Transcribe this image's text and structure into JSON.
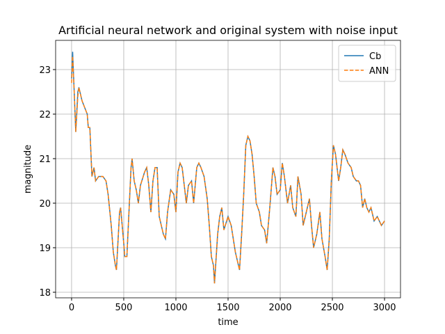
{
  "chart_data": {
    "type": "line",
    "title": "Artificial neural network and original system with noise input",
    "x_label": "time",
    "y_label": "magnitude",
    "x": [
      0,
      10,
      25,
      40,
      60,
      70,
      100,
      150,
      160,
      175,
      195,
      215,
      230,
      260,
      300,
      330,
      350,
      380,
      400,
      420,
      430,
      460,
      470,
      500,
      510,
      530,
      550,
      570,
      580,
      600,
      620,
      640,
      660,
      700,
      720,
      740,
      760,
      780,
      800,
      820,
      840,
      860,
      880,
      900,
      920,
      950,
      980,
      1000,
      1020,
      1040,
      1060,
      1100,
      1120,
      1150,
      1170,
      1200,
      1220,
      1240,
      1270,
      1300,
      1320,
      1340,
      1360,
      1370,
      1400,
      1420,
      1440,
      1460,
      1500,
      1530,
      1550,
      1570,
      1590,
      1610,
      1630,
      1650,
      1670,
      1690,
      1710,
      1730,
      1750,
      1770,
      1800,
      1820,
      1850,
      1870,
      1900,
      1930,
      1950,
      1970,
      2000,
      2020,
      2040,
      2070,
      2100,
      2120,
      2150,
      2170,
      2200,
      2220,
      2250,
      2280,
      2300,
      2320,
      2350,
      2380,
      2400,
      2430,
      2450,
      2470,
      2490,
      2510,
      2530,
      2560,
      2580,
      2600,
      2620,
      2650,
      2680,
      2700,
      2730,
      2750,
      2770,
      2790,
      2810,
      2830,
      2850,
      2870,
      2900,
      2930,
      2950,
      2970,
      3000
    ],
    "series": [
      {
        "name": "Cb",
        "color": "#1f77b4",
        "dash": false,
        "values": [
          22.8,
          23.4,
          22.5,
          21.6,
          22.5,
          22.6,
          22.3,
          22.0,
          21.7,
          21.7,
          20.6,
          20.8,
          20.5,
          20.6,
          20.6,
          20.5,
          20.2,
          19.5,
          18.9,
          18.6,
          18.5,
          19.8,
          19.9,
          19.1,
          18.8,
          18.8,
          19.8,
          20.8,
          21.0,
          20.5,
          20.3,
          20.0,
          20.4,
          20.7,
          20.8,
          20.4,
          19.8,
          20.5,
          20.8,
          20.8,
          19.7,
          19.5,
          19.3,
          19.2,
          19.8,
          20.3,
          20.2,
          19.8,
          20.7,
          20.9,
          20.8,
          20.0,
          20.4,
          20.5,
          20.0,
          20.8,
          20.9,
          20.8,
          20.6,
          20.1,
          19.5,
          18.8,
          18.6,
          18.2,
          19.3,
          19.7,
          19.9,
          19.4,
          19.7,
          19.5,
          19.2,
          18.9,
          18.7,
          18.5,
          19.3,
          20.2,
          21.3,
          21.5,
          21.4,
          21.1,
          20.6,
          20.0,
          19.8,
          19.5,
          19.4,
          19.1,
          19.9,
          20.8,
          20.6,
          20.2,
          20.3,
          20.9,
          20.6,
          20.0,
          20.4,
          19.9,
          19.7,
          20.6,
          20.2,
          19.5,
          19.8,
          20.1,
          19.5,
          19.0,
          19.3,
          19.8,
          19.2,
          18.8,
          18.5,
          19.2,
          20.5,
          21.3,
          21.1,
          20.5,
          20.8,
          21.2,
          21.1,
          20.9,
          20.8,
          20.6,
          20.5,
          20.5,
          20.4,
          19.9,
          20.1,
          19.9,
          19.8,
          19.9,
          19.6,
          19.7,
          19.6,
          19.5,
          19.6
        ]
      },
      {
        "name": "ANN",
        "color": "#ff7f0e",
        "dash": true,
        "values": [
          22.7,
          23.3,
          22.5,
          21.6,
          22.4,
          22.6,
          22.3,
          22.0,
          21.7,
          21.7,
          20.6,
          20.8,
          20.5,
          20.6,
          20.6,
          20.5,
          20.2,
          19.5,
          18.9,
          18.6,
          18.5,
          19.8,
          19.9,
          19.1,
          18.8,
          18.8,
          19.8,
          20.8,
          21.0,
          20.5,
          20.3,
          20.0,
          20.4,
          20.7,
          20.8,
          20.4,
          19.8,
          20.5,
          20.8,
          20.8,
          19.7,
          19.5,
          19.3,
          19.2,
          19.8,
          20.3,
          20.2,
          19.8,
          20.7,
          20.9,
          20.8,
          20.0,
          20.4,
          20.5,
          20.0,
          20.8,
          20.9,
          20.8,
          20.6,
          20.1,
          19.5,
          18.8,
          18.6,
          18.2,
          19.3,
          19.7,
          19.9,
          19.4,
          19.7,
          19.5,
          19.2,
          18.9,
          18.7,
          18.5,
          19.3,
          20.2,
          21.3,
          21.5,
          21.4,
          21.1,
          20.6,
          20.0,
          19.8,
          19.5,
          19.4,
          19.1,
          19.9,
          20.8,
          20.6,
          20.2,
          20.3,
          20.9,
          20.6,
          20.0,
          20.4,
          19.9,
          19.7,
          20.6,
          20.2,
          19.5,
          19.8,
          20.1,
          19.5,
          19.0,
          19.3,
          19.8,
          19.2,
          18.8,
          18.5,
          19.2,
          20.5,
          21.3,
          21.1,
          20.5,
          20.8,
          21.2,
          21.1,
          20.9,
          20.8,
          20.6,
          20.5,
          20.5,
          20.4,
          19.9,
          20.1,
          19.9,
          19.8,
          19.9,
          19.6,
          19.7,
          19.6,
          19.5,
          19.6
        ]
      }
    ],
    "xlim": [
      -153,
      3153
    ],
    "ylim": [
      17.875,
      23.656
    ],
    "xticks": [
      0,
      500,
      1000,
      1500,
      2000,
      2500,
      3000
    ],
    "yticks": [
      18,
      19,
      20,
      21,
      22,
      23
    ],
    "grid": true,
    "legend": "upper right"
  }
}
